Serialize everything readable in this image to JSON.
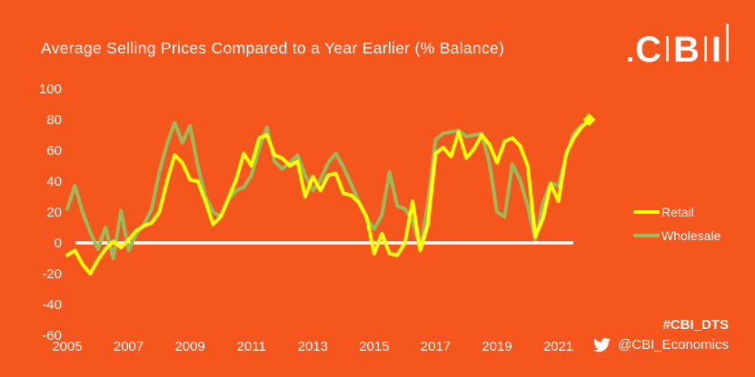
{
  "header": {
    "title": "Average Selling Prices Compared to a Year Earlier (% Balance)",
    "logo_letters": [
      "C",
      "B",
      "I"
    ]
  },
  "legend": {
    "items": [
      {
        "label": "Retail",
        "color": "#FFFF00"
      },
      {
        "label": "Wholesale",
        "color": "#9BBB59"
      }
    ]
  },
  "footer": {
    "hashtag": "#CBI_DTS",
    "twitter_handle": "@CBI_Economics"
  },
  "chart_data": {
    "type": "line",
    "title": "Average Selling Prices Compared to a Year Earlier (% Balance)",
    "unit": "% balance",
    "frequency": "quarterly",
    "x_start": "2005 Q1",
    "x_end": "2022 Q1",
    "x_tick_labels": [
      "2005",
      "2007",
      "2009",
      "2011",
      "2013",
      "2015",
      "2017",
      "2019",
      "2021"
    ],
    "x_ticks_every_n_points": 8,
    "y_ticks": [
      100,
      80,
      60,
      40,
      20,
      0,
      -20,
      -40,
      -60
    ],
    "ylim": [
      -60,
      100
    ],
    "grid": false,
    "zero_line": true,
    "zero_line_color": "#FFFFFF",
    "background_color": "#F4561D",
    "text_color": "#FFFFFF",
    "legend_position": "right",
    "series": [
      {
        "name": "Retail",
        "color": "#FFFF00",
        "values": [
          -8,
          -5,
          -14,
          -20,
          -11,
          -4,
          1,
          -3,
          2,
          8,
          11,
          13,
          20,
          40,
          57,
          52,
          41,
          40,
          27,
          12,
          17,
          29,
          41,
          58,
          50,
          68,
          70,
          57,
          55,
          50,
          53,
          30,
          43,
          34,
          44,
          45,
          32,
          31,
          26,
          17,
          -7,
          6,
          -7,
          -8,
          0,
          27,
          -5,
          12,
          58,
          62,
          56,
          72,
          55,
          61,
          70,
          64,
          52,
          66,
          68,
          63,
          50,
          4,
          16,
          38,
          27,
          58,
          68,
          75,
          80
        ]
      },
      {
        "name": "Wholesale",
        "color": "#9BBB59",
        "values": [
          22,
          37,
          20,
          7,
          -4,
          10,
          -10,
          21,
          -5,
          6,
          12,
          22,
          46,
          64,
          78,
          65,
          76,
          50,
          30,
          20,
          17,
          28,
          34,
          36,
          44,
          61,
          75,
          53,
          48,
          52,
          57,
          44,
          34,
          41,
          52,
          58,
          49,
          38,
          27,
          16,
          9,
          18,
          46,
          24,
          22,
          14,
          -4,
          26,
          67,
          71,
          72,
          73,
          69,
          70,
          71,
          52,
          20,
          17,
          51,
          41,
          24,
          2,
          26,
          39,
          37,
          56,
          71,
          76,
          78
        ]
      }
    ],
    "end_marker": {
      "series": "Retail",
      "shape": "diamond",
      "color": "#FFFF00",
      "value": 80
    }
  }
}
